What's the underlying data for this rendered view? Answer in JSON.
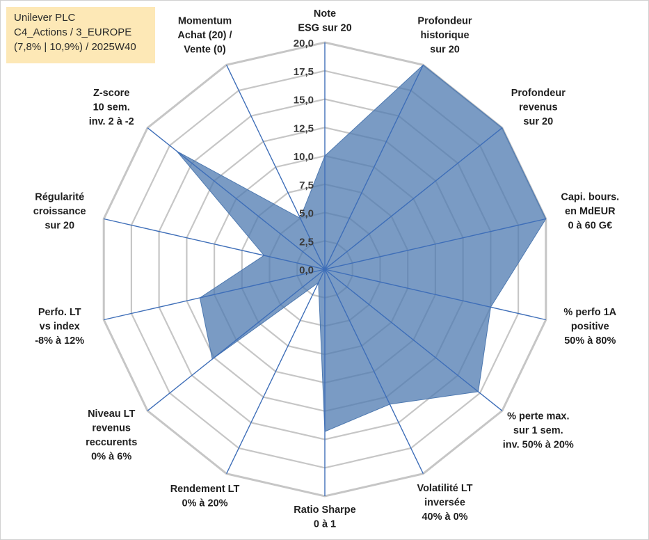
{
  "info": {
    "line1": "Unilever PLC",
    "line2": "C4_Actions / 3_EUROPE",
    "line3": "(7,8% | 10,9%) / 2025W40"
  },
  "chart_data": {
    "type": "radar",
    "title": "",
    "range": [
      0,
      20
    ],
    "ticks": [
      "0,0",
      "2,5",
      "5,0",
      "7,5",
      "10,0",
      "12,5",
      "15,0",
      "17,5",
      "20,0"
    ],
    "tick_values": [
      0,
      2.5,
      5,
      7.5,
      10,
      12.5,
      15,
      17.5,
      20
    ],
    "axes": [
      {
        "label": [
          "Note",
          "ESG sur 20"
        ],
        "value": 10.0
      },
      {
        "label": [
          "Profondeur",
          "historique",
          "sur 20"
        ],
        "value": 20.0
      },
      {
        "label": [
          "Profondeur",
          "revenus",
          "sur 20"
        ],
        "value": 20.0
      },
      {
        "label": [
          "Capi. bours.",
          "en MdEUR",
          "0 à 60 G€"
        ],
        "value": 20.0
      },
      {
        "label": [
          "% perfo 1A",
          "positive",
          "50% à 80%"
        ],
        "value": 15.0
      },
      {
        "label": [
          "% perte max.",
          "sur 1 sem.",
          "inv. 50% à 20%"
        ],
        "value": 17.3
      },
      {
        "label": [
          "Volatilité LT",
          "inversée",
          "40% à 0%"
        ],
        "value": 13.2
      },
      {
        "label": [
          "Ratio Sharpe",
          "0 à 1"
        ],
        "value": 14.3
      },
      {
        "label": [
          "Rendement LT",
          "0% à 20%"
        ],
        "value": 1.3
      },
      {
        "label": [
          "Niveau LT",
          "revenus",
          "reccurents",
          "0% à 6%"
        ],
        "value": 12.7
      },
      {
        "label": [
          "Perfo. LT",
          "vs index",
          "-8% à 12%"
        ],
        "value": 11.3
      },
      {
        "label": [
          "Régularité",
          "croissance",
          "sur 20"
        ],
        "value": 5.5
      },
      {
        "label": [
          "Z-score",
          "10 sem.",
          "inv. 2 à -2"
        ],
        "value": 16.7
      },
      {
        "label": [
          "Momentum",
          "Achat (20) /",
          "Vente (0)"
        ],
        "value": 5.0
      }
    ],
    "colors": {
      "fill": "#4e79b0",
      "fill_opacity": 0.75,
      "spoke": "#3e6eb8",
      "grid": "#c6c6c6"
    }
  }
}
